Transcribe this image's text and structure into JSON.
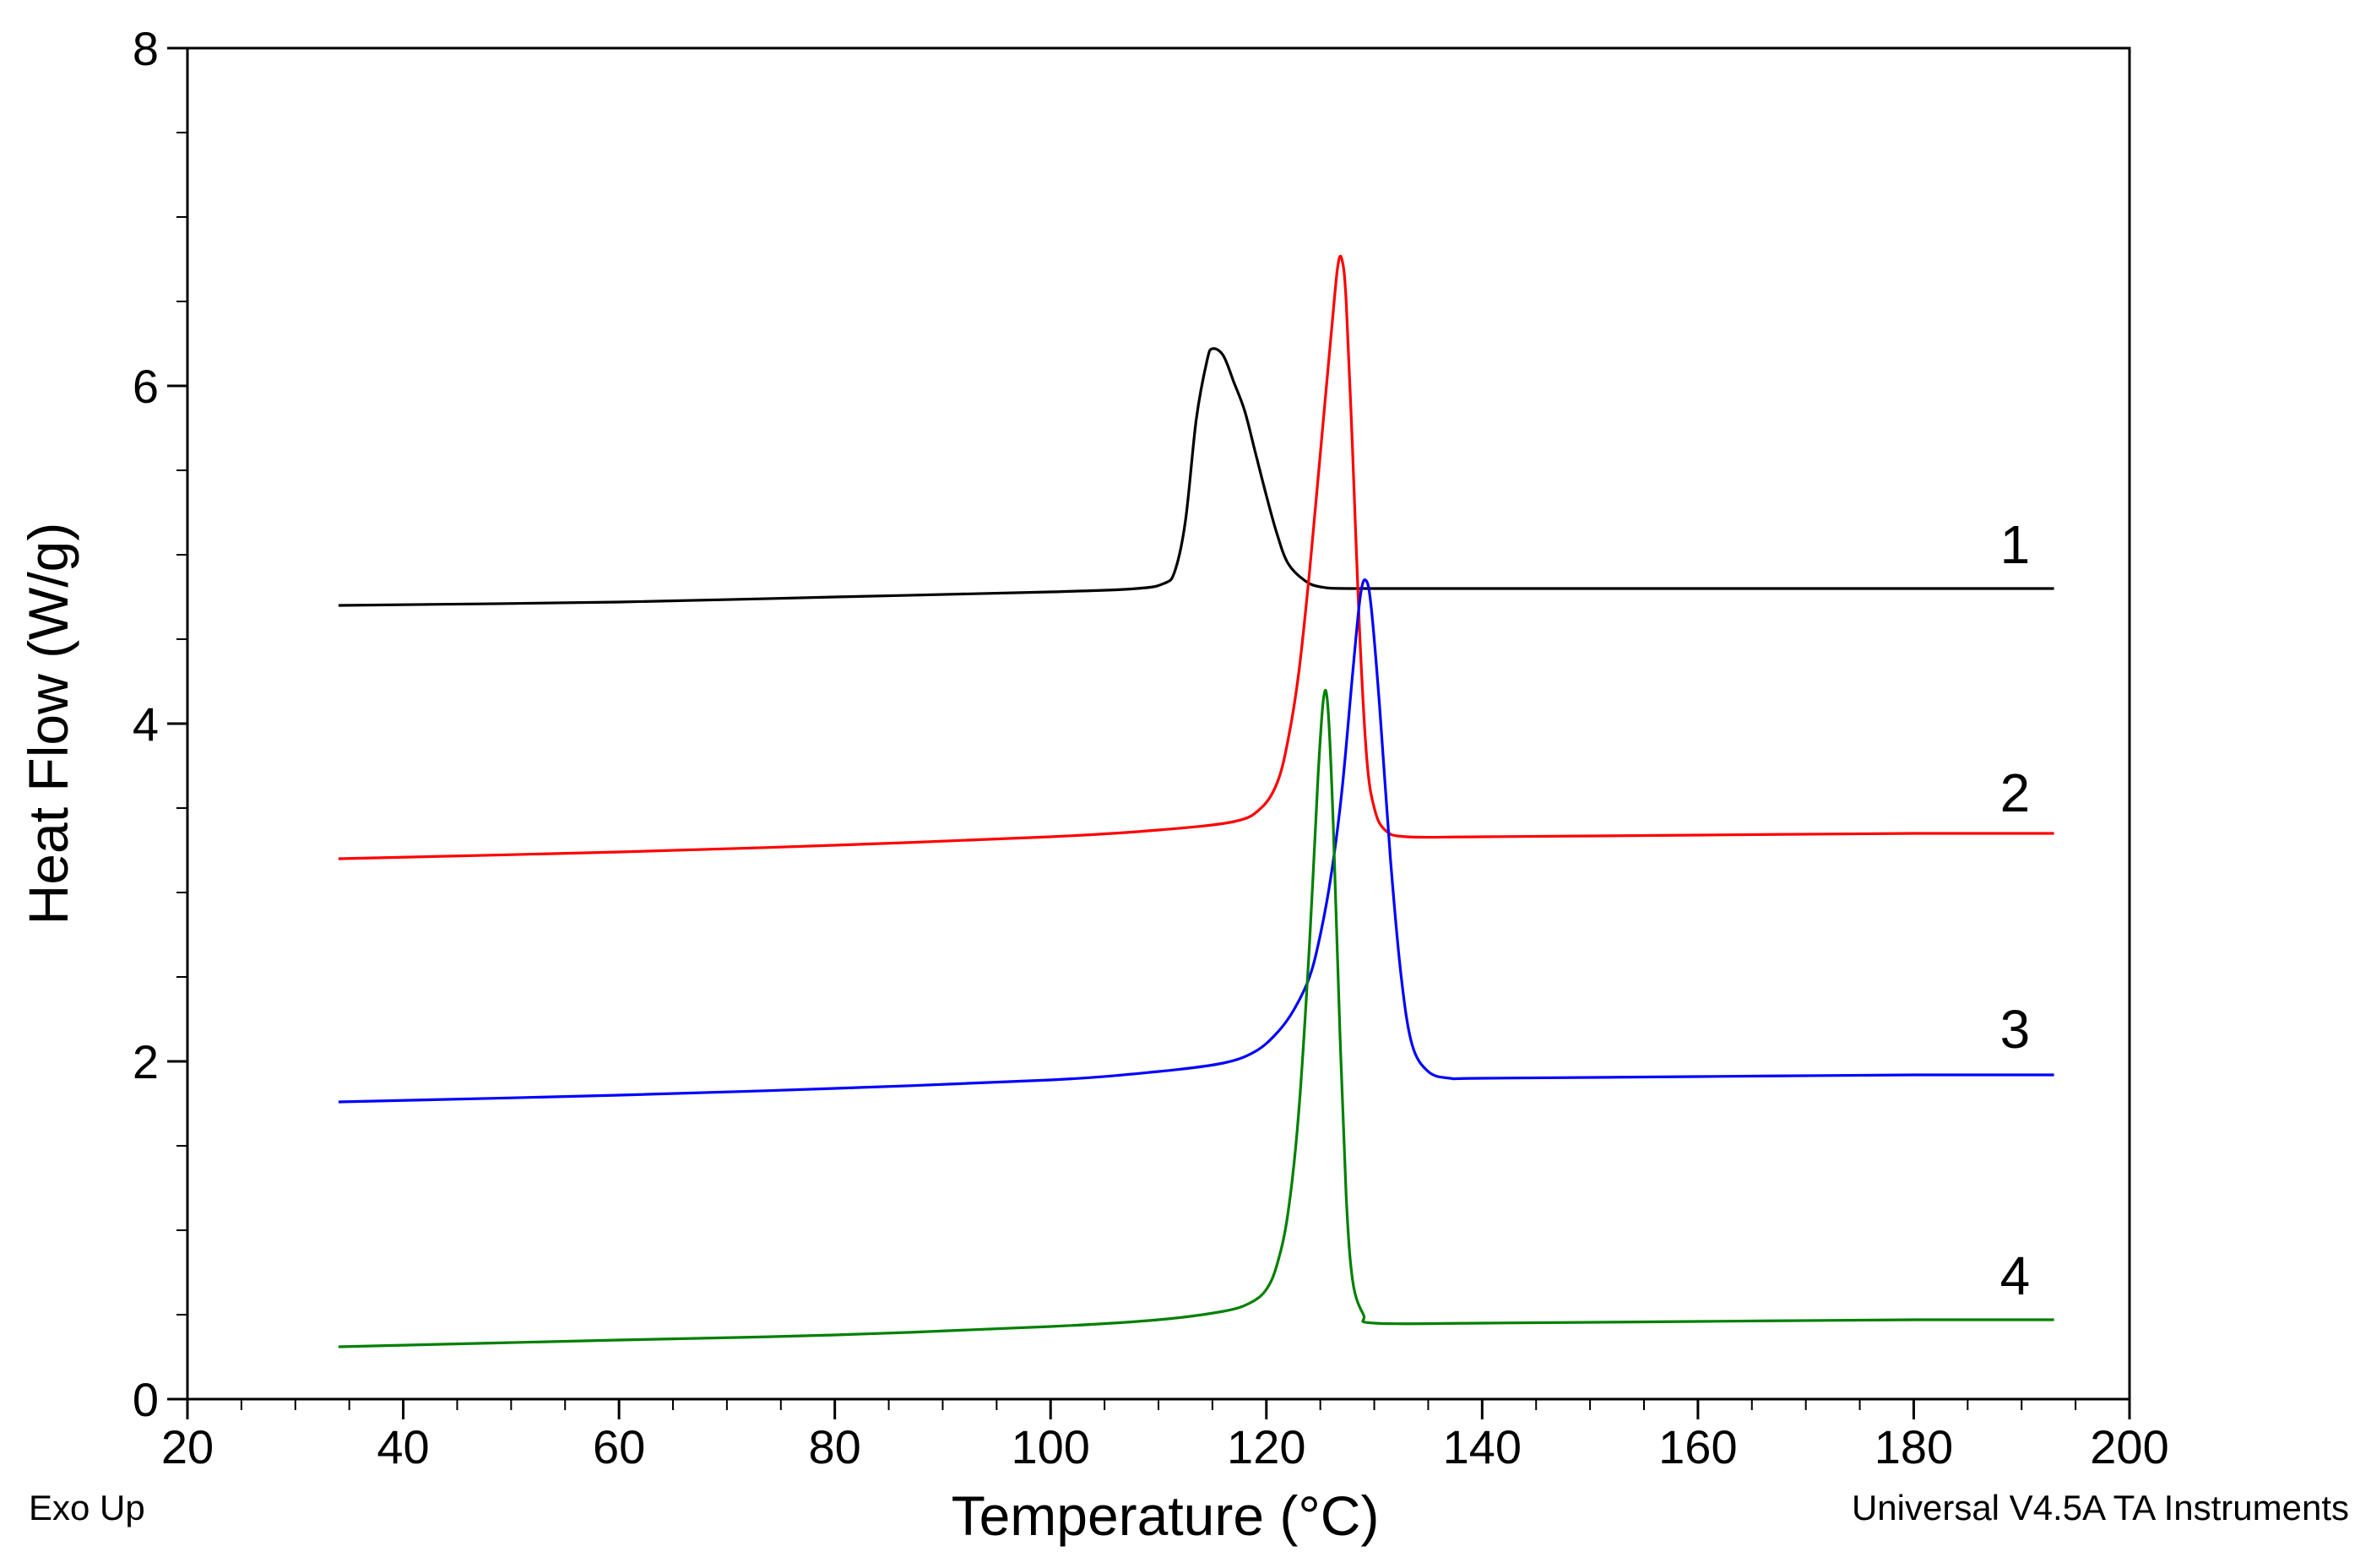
{
  "chart_data": {
    "type": "line",
    "title": "",
    "xlabel": "Temperature (°C)",
    "ylabel": "Heat Flow (W/g)",
    "xlim": [
      20,
      200
    ],
    "ylim": [
      0,
      8
    ],
    "x_ticks": [
      20,
      40,
      60,
      80,
      100,
      120,
      140,
      160,
      180,
      200
    ],
    "y_ticks": [
      0,
      2,
      4,
      6,
      8
    ],
    "corner_left": "Exo Up",
    "corner_right": "Universal V4.5A TA Instruments",
    "grid": false,
    "series": [
      {
        "name": "1",
        "color": "#000000",
        "label_x": 188,
        "label_y": 4.95,
        "points": [
          [
            34,
            4.7
          ],
          [
            60,
            4.72
          ],
          [
            80,
            4.75
          ],
          [
            100,
            4.78
          ],
          [
            108,
            4.8
          ],
          [
            110.5,
            4.83
          ],
          [
            111.5,
            4.9
          ],
          [
            112.5,
            5.2
          ],
          [
            113.5,
            5.8
          ],
          [
            114.5,
            6.15
          ],
          [
            115,
            6.22
          ],
          [
            116,
            6.18
          ],
          [
            117,
            6.02
          ],
          [
            118,
            5.85
          ],
          [
            119,
            5.6
          ],
          [
            120,
            5.35
          ],
          [
            121,
            5.12
          ],
          [
            122,
            4.95
          ],
          [
            123.5,
            4.85
          ],
          [
            125,
            4.81
          ],
          [
            128,
            4.8
          ],
          [
            140,
            4.8
          ],
          [
            160,
            4.8
          ],
          [
            180,
            4.8
          ],
          [
            193,
            4.8
          ]
        ]
      },
      {
        "name": "2",
        "color": "#ff0000",
        "label_x": 188,
        "label_y": 3.48,
        "points": [
          [
            34,
            3.2
          ],
          [
            60,
            3.24
          ],
          [
            80,
            3.28
          ],
          [
            100,
            3.33
          ],
          [
            110,
            3.37
          ],
          [
            117,
            3.42
          ],
          [
            119.5,
            3.5
          ],
          [
            121,
            3.65
          ],
          [
            122,
            3.9
          ],
          [
            123,
            4.3
          ],
          [
            124,
            4.9
          ],
          [
            125,
            5.6
          ],
          [
            126,
            6.3
          ],
          [
            126.6,
            6.7
          ],
          [
            127,
            6.75
          ],
          [
            127.4,
            6.5
          ],
          [
            128,
            5.6
          ],
          [
            128.6,
            4.6
          ],
          [
            129.3,
            3.8
          ],
          [
            130,
            3.5
          ],
          [
            131,
            3.37
          ],
          [
            133,
            3.33
          ],
          [
            140,
            3.33
          ],
          [
            160,
            3.34
          ],
          [
            180,
            3.35
          ],
          [
            193,
            3.35
          ]
        ]
      },
      {
        "name": "3",
        "color": "#0000ff",
        "label_x": 188,
        "label_y": 2.08,
        "points": [
          [
            34,
            1.76
          ],
          [
            60,
            1.8
          ],
          [
            80,
            1.84
          ],
          [
            100,
            1.89
          ],
          [
            110,
            1.94
          ],
          [
            116,
            1.99
          ],
          [
            119,
            2.06
          ],
          [
            121,
            2.17
          ],
          [
            122.5,
            2.3
          ],
          [
            124,
            2.5
          ],
          [
            125,
            2.75
          ],
          [
            126,
            3.1
          ],
          [
            127,
            3.6
          ],
          [
            128,
            4.3
          ],
          [
            128.7,
            4.75
          ],
          [
            129.2,
            4.85
          ],
          [
            129.7,
            4.7
          ],
          [
            130.5,
            4.1
          ],
          [
            131.5,
            3.2
          ],
          [
            132.5,
            2.5
          ],
          [
            133.5,
            2.1
          ],
          [
            135,
            1.94
          ],
          [
            137,
            1.9
          ],
          [
            140,
            1.9
          ],
          [
            160,
            1.91
          ],
          [
            180,
            1.92
          ],
          [
            193,
            1.92
          ]
        ]
      },
      {
        "name": "4",
        "color": "#008000",
        "label_x": 188,
        "label_y": 0.62,
        "points": [
          [
            34,
            0.31
          ],
          [
            60,
            0.35
          ],
          [
            80,
            0.38
          ],
          [
            100,
            0.43
          ],
          [
            110,
            0.47
          ],
          [
            116,
            0.52
          ],
          [
            118.5,
            0.57
          ],
          [
            120,
            0.65
          ],
          [
            121,
            0.8
          ],
          [
            122,
            1.1
          ],
          [
            123,
            1.7
          ],
          [
            124,
            2.7
          ],
          [
            124.8,
            3.7
          ],
          [
            125.3,
            4.15
          ],
          [
            125.7,
            4.1
          ],
          [
            126.2,
            3.4
          ],
          [
            126.8,
            2.2
          ],
          [
            127.4,
            1.2
          ],
          [
            128,
            0.7
          ],
          [
            129,
            0.5
          ],
          [
            130,
            0.45
          ],
          [
            140,
            0.45
          ],
          [
            160,
            0.46
          ],
          [
            180,
            0.47
          ],
          [
            193,
            0.47
          ]
        ]
      }
    ]
  }
}
